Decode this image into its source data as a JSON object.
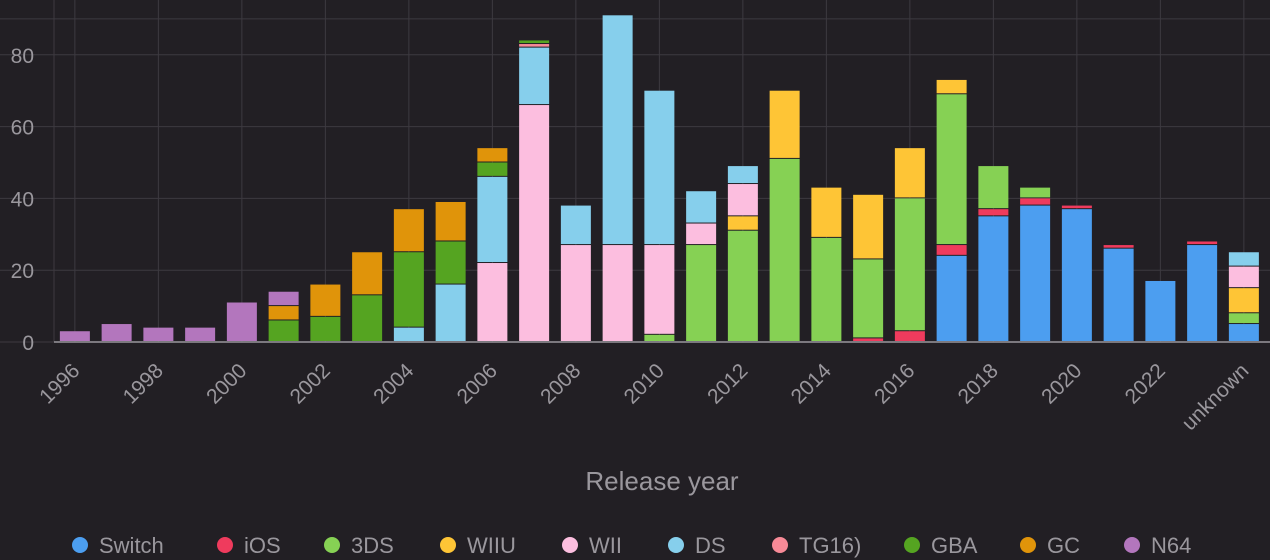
{
  "chart_data": {
    "type": "bar",
    "stacked": true,
    "xlabel": "Release year",
    "ylabel": "",
    "ylim": [
      0,
      90
    ],
    "yticks": [
      0,
      20,
      40,
      60,
      80
    ],
    "grid": true,
    "legend_position": "bottom",
    "categories": [
      "1996",
      "1997",
      "1998",
      "1999",
      "2000",
      "2001",
      "2002",
      "2003",
      "2004",
      "2005",
      "2006",
      "2007",
      "2008",
      "2009",
      "2010",
      "2011",
      "2012",
      "2013",
      "2014",
      "2015",
      "2016",
      "2017",
      "2018",
      "2019",
      "2020",
      "2021",
      "2022",
      "2023",
      "unknown"
    ],
    "x_tick_labels": [
      "1996",
      "",
      "1998",
      "",
      "2000",
      "",
      "2002",
      "",
      "2004",
      "",
      "2006",
      "",
      "2008",
      "",
      "2010",
      "",
      "2012",
      "",
      "2014",
      "",
      "2016",
      "",
      "2018",
      "",
      "2020",
      "",
      "2022",
      "",
      "unknown"
    ],
    "series": [
      {
        "name": "Switch",
        "color": "#4c9ef0",
        "values": [
          0,
          0,
          0,
          0,
          0,
          0,
          0,
          0,
          0,
          0,
          0,
          0,
          0,
          0,
          0,
          0,
          0,
          0,
          0,
          0,
          0,
          24,
          35,
          38,
          37,
          26,
          17,
          27,
          5
        ]
      },
      {
        "name": "iOS",
        "color": "#ef3b5d",
        "values": [
          0,
          0,
          0,
          0,
          0,
          0,
          0,
          0,
          0,
          0,
          0,
          0,
          0,
          0,
          0,
          0,
          0,
          0,
          0,
          1,
          3,
          3,
          2,
          2,
          1,
          1,
          0,
          1,
          0
        ]
      },
      {
        "name": "3DS",
        "color": "#86d154",
        "values": [
          0,
          0,
          0,
          0,
          0,
          0,
          0,
          0,
          0,
          0,
          0,
          0,
          0,
          0,
          2,
          27,
          31,
          51,
          29,
          22,
          37,
          42,
          12,
          3,
          0,
          0,
          0,
          0,
          3
        ]
      },
      {
        "name": "WIIU",
        "color": "#fec536",
        "values": [
          0,
          0,
          0,
          0,
          0,
          0,
          0,
          0,
          0,
          0,
          0,
          0,
          0,
          0,
          0,
          0,
          4,
          19,
          14,
          18,
          14,
          4,
          0,
          0,
          0,
          0,
          0,
          0,
          7
        ]
      },
      {
        "name": "WII",
        "color": "#fcbedf",
        "values": [
          0,
          0,
          0,
          0,
          0,
          0,
          0,
          0,
          0,
          0,
          22,
          66,
          27,
          27,
          25,
          6,
          9,
          0,
          0,
          0,
          0,
          0,
          0,
          0,
          0,
          0,
          0,
          0,
          6
        ]
      },
      {
        "name": "DS",
        "color": "#86cfec",
        "values": [
          0,
          0,
          0,
          0,
          0,
          0,
          0,
          0,
          4,
          16,
          24,
          16,
          11,
          64,
          43,
          9,
          5,
          0,
          0,
          0,
          0,
          0,
          0,
          0,
          0,
          0,
          0,
          0,
          4
        ]
      },
      {
        "name": "TG16)",
        "color": "#f78a97",
        "values": [
          0,
          0,
          0,
          0,
          0,
          0,
          0,
          0,
          0,
          0,
          0,
          1,
          0,
          0,
          0,
          0,
          0,
          0,
          0,
          0,
          0,
          0,
          0,
          0,
          0,
          0,
          0,
          0,
          0
        ]
      },
      {
        "name": "GBA",
        "color": "#55a421",
        "values": [
          0,
          0,
          0,
          0,
          0,
          6,
          7,
          13,
          21,
          12,
          4,
          1,
          0,
          0,
          0,
          0,
          0,
          0,
          0,
          0,
          0,
          0,
          0,
          0,
          0,
          0,
          0,
          0,
          0
        ]
      },
      {
        "name": "GC",
        "color": "#e0940a",
        "values": [
          0,
          0,
          0,
          0,
          0,
          4,
          9,
          12,
          12,
          11,
          4,
          0,
          0,
          0,
          0,
          0,
          0,
          0,
          0,
          0,
          0,
          0,
          0,
          0,
          0,
          0,
          0,
          0,
          0
        ]
      },
      {
        "name": "N64",
        "color": "#b376bd",
        "values": [
          3,
          5,
          4,
          4,
          11,
          4,
          0,
          0,
          0,
          0,
          0,
          0,
          0,
          0,
          0,
          0,
          0,
          0,
          0,
          0,
          0,
          0,
          0,
          0,
          0,
          0,
          0,
          0,
          0
        ]
      }
    ]
  }
}
